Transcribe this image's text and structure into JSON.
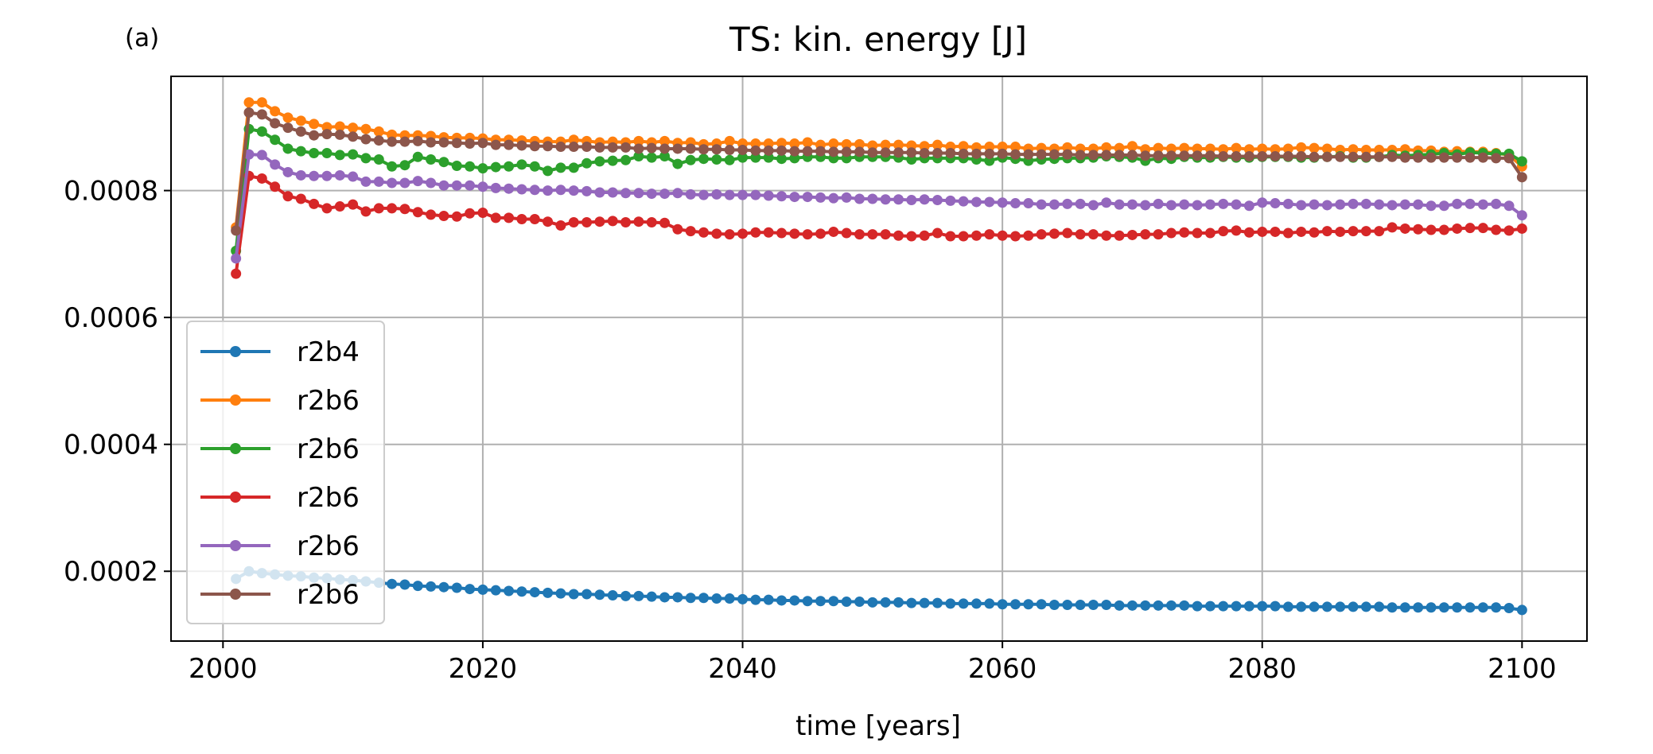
{
  "panel_label": "(a)",
  "chart_data": {
    "type": "line",
    "title": "TS: kin. energy [J]",
    "xlabel": "time [years]",
    "ylabel": "",
    "xlim": [
      1996,
      2105
    ],
    "ylim": [
      9e-05,
      0.00098
    ],
    "xticks": [
      2000,
      2020,
      2040,
      2060,
      2080,
      2100
    ],
    "xtick_labels": [
      "2000",
      "2020",
      "2040",
      "2060",
      "2080",
      "2100"
    ],
    "yticks": [
      0.0002,
      0.0004,
      0.0006,
      0.0008
    ],
    "ytick_labels": [
      "0.0002",
      "0.0004",
      "0.0006",
      "0.0008"
    ],
    "grid": true,
    "legend_position": "lower-left",
    "x_start": 2001,
    "x_end": 2100,
    "series": [
      {
        "name": "r2b4",
        "color": "#1f77b4",
        "values": [
          0.000188,
          0.0002,
          0.000197,
          0.000195,
          0.000193,
          0.000192,
          0.00019,
          0.000189,
          0.000187,
          0.000186,
          0.000184,
          0.000182,
          0.00018,
          0.000179,
          0.000177,
          0.000176,
          0.000175,
          0.000174,
          0.000172,
          0.000171,
          0.00017,
          0.000169,
          0.000168,
          0.000167,
          0.000166,
          0.000165,
          0.000164,
          0.000164,
          0.000163,
          0.000162,
          0.000161,
          0.000161,
          0.00016,
          0.000159,
          0.000159,
          0.000158,
          0.000158,
          0.000157,
          0.000157,
          0.000156,
          0.000155,
          0.000155,
          0.000154,
          0.000154,
          0.000153,
          0.000153,
          0.000153,
          0.000152,
          0.000152,
          0.000151,
          0.000151,
          0.000151,
          0.00015,
          0.00015,
          0.00015,
          0.000149,
          0.000149,
          0.000149,
          0.000149,
          0.000148,
          0.000148,
          0.000148,
          0.000148,
          0.000147,
          0.000147,
          0.000147,
          0.000147,
          0.000147,
          0.000146,
          0.000146,
          0.000146,
          0.000146,
          0.000146,
          0.000146,
          0.000145,
          0.000145,
          0.000145,
          0.000145,
          0.000145,
          0.000145,
          0.000145,
          0.000144,
          0.000144,
          0.000144,
          0.000144,
          0.000144,
          0.000144,
          0.000144,
          0.000144,
          0.000143,
          0.000143,
          0.000143,
          0.000143,
          0.000143,
          0.000143,
          0.000143,
          0.000143,
          0.000143,
          0.000142,
          0.000139
        ]
      },
      {
        "name": "r2b6",
        "color": "#ff7f0e",
        "values": [
          0.000742,
          0.000939,
          0.000939,
          0.000925,
          0.000915,
          0.00091,
          0.000905,
          0.0009,
          0.000901,
          0.000899,
          0.000897,
          0.000893,
          0.000888,
          0.000887,
          0.000887,
          0.000886,
          0.000884,
          0.000883,
          0.000883,
          0.000882,
          0.00088,
          0.00088,
          0.000879,
          0.000878,
          0.000877,
          0.000877,
          0.00088,
          0.000878,
          0.000876,
          0.000877,
          0.000876,
          0.000878,
          0.000876,
          0.000878,
          0.000875,
          0.000876,
          0.000873,
          0.000874,
          0.000878,
          0.000874,
          0.000874,
          0.000874,
          0.000875,
          0.000874,
          0.000876,
          0.000872,
          0.000874,
          0.000873,
          0.000873,
          0.000871,
          0.000872,
          0.000872,
          0.000871,
          0.00087,
          0.000872,
          0.000869,
          0.00087,
          0.000868,
          0.000869,
          0.000869,
          0.000869,
          0.000866,
          0.000867,
          0.000866,
          0.000868,
          0.000866,
          0.000866,
          0.000868,
          0.000867,
          0.00087,
          0.000865,
          0.000867,
          0.000866,
          0.000867,
          0.000866,
          0.000866,
          0.000865,
          0.000867,
          0.000865,
          0.000866,
          0.000865,
          0.000866,
          0.000868,
          0.000867,
          0.000866,
          0.000864,
          0.000865,
          0.000864,
          0.000864,
          0.000864,
          0.000865,
          0.000863,
          0.000863,
          0.000861,
          0.000862,
          0.000861,
          0.000861,
          0.000859,
          0.000856,
          0.000838
        ]
      },
      {
        "name": "r2b6",
        "color": "#2ca02c",
        "values": [
          0.000705,
          0.000897,
          0.000893,
          0.00088,
          0.000866,
          0.000862,
          0.000859,
          0.000859,
          0.000856,
          0.000857,
          0.000851,
          0.000849,
          0.000838,
          0.00084,
          0.000853,
          0.000849,
          0.000845,
          0.000839,
          0.000838,
          0.000835,
          0.000837,
          0.000838,
          0.000841,
          0.000838,
          0.000831,
          0.000836,
          0.000836,
          0.000843,
          0.000846,
          0.000847,
          0.000848,
          0.000854,
          0.000852,
          0.000854,
          0.000842,
          0.000848,
          0.00085,
          0.000849,
          0.000848,
          0.000852,
          0.000852,
          0.000852,
          0.00085,
          0.000851,
          0.000853,
          0.000853,
          0.000851,
          0.000851,
          0.000853,
          0.000853,
          0.000853,
          0.000852,
          0.000849,
          0.000851,
          0.000851,
          0.000851,
          0.000851,
          0.000849,
          0.000847,
          0.000852,
          0.00085,
          0.000847,
          0.000849,
          0.00085,
          0.000851,
          0.000851,
          0.000852,
          0.000854,
          0.000853,
          0.000852,
          0.000847,
          0.000851,
          0.00085,
          0.000853,
          0.000852,
          0.000852,
          0.000853,
          0.000852,
          0.000852,
          0.000853,
          0.000853,
          0.000853,
          0.000852,
          0.000852,
          0.000853,
          0.000854,
          0.000852,
          0.000852,
          0.000853,
          0.000856,
          0.000855,
          0.000856,
          0.000857,
          0.000859,
          0.000857,
          0.00086,
          0.000859,
          0.000858,
          0.000858,
          0.000846
        ]
      },
      {
        "name": "r2b6",
        "color": "#d62728",
        "values": [
          0.000669,
          0.000823,
          0.000819,
          0.000806,
          0.000791,
          0.000787,
          0.000779,
          0.000772,
          0.000775,
          0.000778,
          0.000767,
          0.000772,
          0.000772,
          0.000771,
          0.000766,
          0.000762,
          0.00076,
          0.000759,
          0.000764,
          0.000765,
          0.000757,
          0.000757,
          0.000755,
          0.000755,
          0.000751,
          0.000745,
          0.00075,
          0.00075,
          0.000751,
          0.000752,
          0.00075,
          0.000751,
          0.00075,
          0.000749,
          0.000739,
          0.000736,
          0.000734,
          0.000732,
          0.000731,
          0.000732,
          0.000734,
          0.000734,
          0.000733,
          0.000732,
          0.000731,
          0.000732,
          0.000735,
          0.000733,
          0.000731,
          0.000731,
          0.000731,
          0.000729,
          0.000728,
          0.000729,
          0.000733,
          0.000728,
          0.000728,
          0.000729,
          0.000731,
          0.000729,
          0.000728,
          0.000729,
          0.000731,
          0.000732,
          0.000733,
          0.000731,
          0.000731,
          0.000729,
          0.000729,
          0.00073,
          0.000731,
          0.000731,
          0.000733,
          0.000734,
          0.000733,
          0.000733,
          0.000736,
          0.000737,
          0.000734,
          0.000735,
          0.000735,
          0.000733,
          0.000735,
          0.000734,
          0.000736,
          0.000735,
          0.000736,
          0.000736,
          0.000736,
          0.000742,
          0.00074,
          0.000739,
          0.000738,
          0.000738,
          0.00074,
          0.000741,
          0.000741,
          0.000738,
          0.000737,
          0.00074
        ]
      },
      {
        "name": "r2b6",
        "color": "#9467bd",
        "values": [
          0.000693,
          0.000857,
          0.000856,
          0.000841,
          0.000829,
          0.000824,
          0.000823,
          0.000823,
          0.000824,
          0.000822,
          0.000814,
          0.000814,
          0.000812,
          0.000812,
          0.000815,
          0.000812,
          0.000808,
          0.000808,
          0.000808,
          0.000806,
          0.000804,
          0.000803,
          0.000802,
          0.000801,
          0.0008,
          0.000801,
          0.0008,
          0.000799,
          0.000797,
          0.000797,
          0.000796,
          0.000796,
          0.000795,
          0.000795,
          0.000796,
          0.000794,
          0.000793,
          0.000794,
          0.000793,
          0.000793,
          0.000793,
          0.000792,
          0.000791,
          0.00079,
          0.00079,
          0.000789,
          0.000788,
          0.000789,
          0.000787,
          0.000787,
          0.000786,
          0.000786,
          0.000785,
          0.000786,
          0.000785,
          0.000784,
          0.000783,
          0.000782,
          0.000782,
          0.000781,
          0.00078,
          0.00078,
          0.000778,
          0.000778,
          0.000779,
          0.000779,
          0.000777,
          0.000781,
          0.000778,
          0.000778,
          0.000777,
          0.000779,
          0.000777,
          0.000778,
          0.000777,
          0.000778,
          0.000779,
          0.000778,
          0.000776,
          0.000781,
          0.00078,
          0.000779,
          0.000777,
          0.000778,
          0.000777,
          0.000778,
          0.000779,
          0.000779,
          0.000778,
          0.000777,
          0.000778,
          0.000778,
          0.000776,
          0.000776,
          0.000779,
          0.000779,
          0.000778,
          0.000779,
          0.000776,
          0.000761
        ]
      },
      {
        "name": "r2b6",
        "color": "#8c564b",
        "values": [
          0.000737,
          0.000923,
          0.00092,
          0.000906,
          0.000899,
          0.000893,
          0.000887,
          0.000889,
          0.000888,
          0.000885,
          0.000881,
          0.000879,
          0.000877,
          0.000877,
          0.000878,
          0.000876,
          0.000876,
          0.000875,
          0.000874,
          0.000875,
          0.000872,
          0.000872,
          0.000871,
          0.00087,
          0.00087,
          0.000869,
          0.000869,
          0.000869,
          0.000868,
          0.000868,
          0.000868,
          0.000866,
          0.000867,
          0.000866,
          0.000866,
          0.000866,
          0.000865,
          0.000865,
          0.000864,
          0.000864,
          0.000863,
          0.000863,
          0.000863,
          0.000862,
          0.000862,
          0.000862,
          0.000861,
          0.000861,
          0.000861,
          0.00086,
          0.00086,
          0.00086,
          0.00086,
          0.000859,
          0.000859,
          0.000859,
          0.000858,
          0.000858,
          0.000858,
          0.000858,
          0.000857,
          0.000857,
          0.000857,
          0.000857,
          0.000857,
          0.000856,
          0.000856,
          0.000856,
          0.000856,
          0.000856,
          0.000855,
          0.000855,
          0.000855,
          0.000855,
          0.000855,
          0.000855,
          0.000854,
          0.000854,
          0.000854,
          0.000854,
          0.000854,
          0.000854,
          0.000854,
          0.000853,
          0.000853,
          0.000853,
          0.000853,
          0.000853,
          0.000853,
          0.000853,
          0.000852,
          0.000852,
          0.000852,
          0.000852,
          0.000852,
          0.000852,
          0.000852,
          0.000851,
          0.000851,
          0.000821
        ]
      }
    ]
  }
}
